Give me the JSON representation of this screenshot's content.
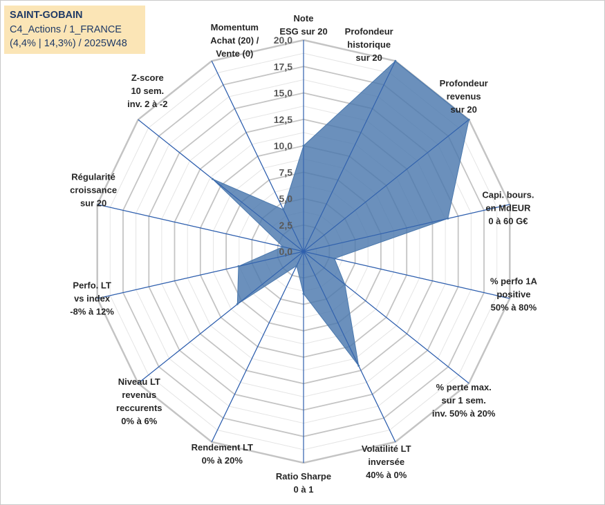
{
  "header": {
    "line1": "SAINT-GOBAIN",
    "line2": "C4_Actions / 1_FRANCE",
    "line3": "(4,4% | 14,3%) / 2025W48",
    "background_color": "#fbe5b6",
    "text_color": "#1f3a66"
  },
  "chart_data": {
    "type": "radar",
    "rmin": 0,
    "rmax": 20,
    "tick_labels": [
      "0,0",
      "2,5",
      "5,0",
      "7,5",
      "10,0",
      "12,5",
      "15,0",
      "17,5",
      "20,0"
    ],
    "axes": [
      {
        "lines": [
          "Note",
          "ESG sur 20"
        ]
      },
      {
        "lines": [
          "Profondeur",
          "historique",
          "sur 20"
        ]
      },
      {
        "lines": [
          "Profondeur",
          "revenus",
          "sur 20"
        ]
      },
      {
        "lines": [
          "Capi. bours.",
          "en MdEUR",
          "0 à 60 G€"
        ]
      },
      {
        "lines": [
          "% perfo 1A",
          "positive",
          "50% à 80%"
        ]
      },
      {
        "lines": [
          "% perte max.",
          "sur 1 sem.",
          "inv. 50% à 20%"
        ]
      },
      {
        "lines": [
          "Volatilité LT",
          "inversée",
          "40% à 0%"
        ]
      },
      {
        "lines": [
          "Ratio Sharpe",
          "0 à 1"
        ]
      },
      {
        "lines": [
          "Rendement LT",
          "0% à 20%"
        ]
      },
      {
        "lines": [
          "Niveau LT",
          "revenus",
          "reccurents",
          "0% à 6%"
        ]
      },
      {
        "lines": [
          "Perfo. LT",
          "vs index",
          "-8% à 12%"
        ]
      },
      {
        "lines": [
          "Régularité",
          "croissance",
          "sur 20"
        ]
      },
      {
        "lines": [
          "Z-score",
          "10 sem.",
          "inv. 2 à -2"
        ]
      },
      {
        "lines": [
          "Momentum",
          "Achat (20) /",
          "Vente (0)"
        ]
      }
    ],
    "series": [
      {
        "name": "SAINT-GOBAIN",
        "values": [
          10.0,
          20.0,
          20.0,
          14.0,
          3.0,
          5.0,
          12.0,
          4.0,
          1.5,
          8.0,
          6.3,
          2.0,
          11.0,
          4.4
        ]
      }
    ],
    "colors": {
      "fill": "#4a78ad",
      "stroke": "#4a78ad",
      "spoke": "#2f5fae",
      "ring_major": "#c4c4c4",
      "ring_minor": "#e4e4e4"
    }
  }
}
